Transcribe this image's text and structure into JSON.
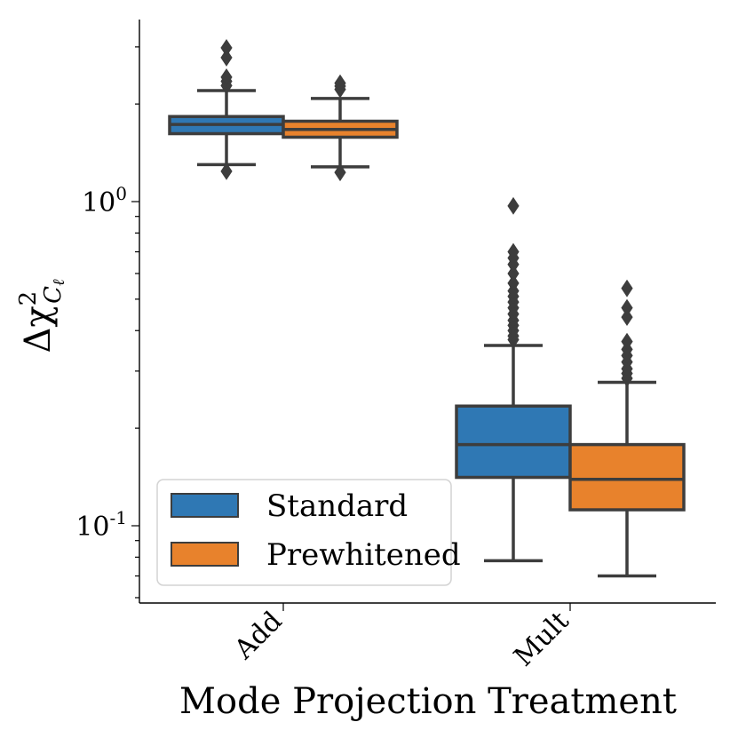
{
  "chart_data": {
    "type": "box",
    "title": "",
    "xlabel": "Mode Projection Treatment",
    "ylabel": "Δχ² Cℓ",
    "ylabel_parts": {
      "base": "Δχ",
      "sup": "2",
      "sub_main": "C",
      "sub_sub": "ℓ"
    },
    "yscale": "log",
    "ylim": [
      0.058,
      3.3
    ],
    "yticks": [
      {
        "value": 1.0,
        "base": "10",
        "exp": "0"
      },
      {
        "value": 0.1,
        "base": "10",
        "exp": "-1"
      }
    ],
    "categories": [
      "Add",
      "Mult"
    ],
    "legend": {
      "position": "lower-left",
      "entries": [
        {
          "name": "Standard",
          "color": "#2f78b4"
        },
        {
          "name": "Prewhitened",
          "color": "#e8822c"
        }
      ]
    },
    "series": [
      {
        "name": "Standard",
        "color": "#2f78b4",
        "boxes": [
          {
            "whislo": 1.3,
            "q1": 1.62,
            "median": 1.73,
            "q3": 1.83,
            "whishi": 2.2,
            "fliers": [
              1.24,
              2.28,
              2.35,
              2.42,
              2.78,
              2.98
            ]
          },
          {
            "whislo": 0.078,
            "q1": 0.141,
            "median": 0.178,
            "q3": 0.234,
            "whishi": 0.36,
            "fliers": [
              0.375,
              0.385,
              0.4,
              0.415,
              0.43,
              0.45,
              0.47,
              0.49,
              0.51,
              0.53,
              0.56,
              0.6,
              0.64,
              0.67,
              0.7,
              0.97
            ]
          }
        ]
      },
      {
        "name": "Prewhitened",
        "color": "#e8822c",
        "boxes": [
          {
            "whislo": 1.28,
            "q1": 1.58,
            "median": 1.67,
            "q3": 1.77,
            "whishi": 2.08,
            "fliers": [
              1.23,
              2.22,
              2.27,
              2.32
            ]
          },
          {
            "whislo": 0.07,
            "q1": 0.112,
            "median": 0.139,
            "q3": 0.178,
            "whishi": 0.277,
            "fliers": [
              0.285,
              0.295,
              0.305,
              0.32,
              0.335,
              0.35,
              0.37,
              0.44,
              0.47,
              0.54
            ]
          }
        ]
      }
    ]
  }
}
